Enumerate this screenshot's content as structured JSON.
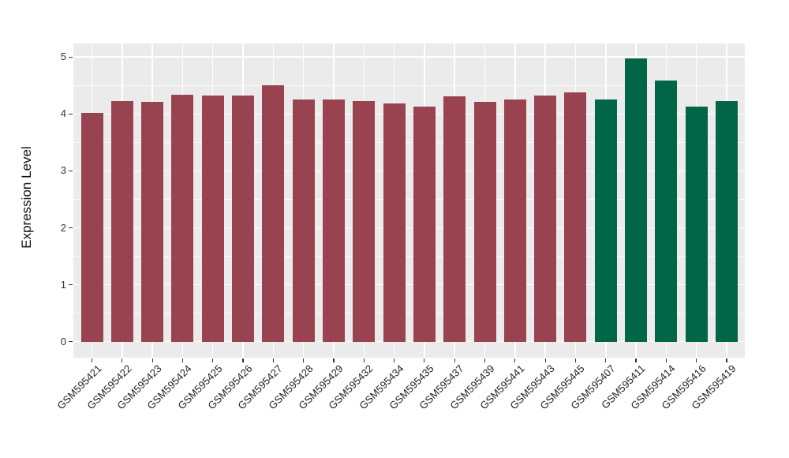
{
  "figure": {
    "background": "#FFFFFF",
    "panel_background": "#EBEBEB",
    "grid_color": "#FFFFFF",
    "axis_text_color": "#333333",
    "title": ""
  },
  "chart_data": {
    "type": "bar",
    "title": "",
    "xlabel": "",
    "ylabel": "Expression Level",
    "legend": "none",
    "grid": "on",
    "categories": [
      "GSM595421",
      "GSM595422",
      "GSM595423",
      "GSM595424",
      "GSM595425",
      "GSM595426",
      "GSM595427",
      "GSM595428",
      "GSM595429",
      "GSM595432",
      "GSM595434",
      "GSM595435",
      "GSM595437",
      "GSM595439",
      "GSM595441",
      "GSM595443",
      "GSM595445",
      "GSM595407",
      "GSM595411",
      "GSM595414",
      "GSM595416",
      "GSM595419"
    ],
    "values": [
      4.02,
      4.23,
      4.21,
      4.34,
      4.33,
      4.33,
      4.5,
      4.26,
      4.25,
      4.23,
      4.19,
      4.13,
      4.31,
      4.21,
      4.26,
      4.33,
      4.38,
      4.25,
      4.97,
      4.58,
      4.13,
      4.22
    ],
    "bar_colors": [
      "#9A4350",
      "#9A4350",
      "#9A4350",
      "#9A4350",
      "#9A4350",
      "#9A4350",
      "#9A4350",
      "#9A4350",
      "#9A4350",
      "#9A4350",
      "#9A4350",
      "#9A4350",
      "#9A4350",
      "#9A4350",
      "#9A4350",
      "#9A4350",
      "#9A4350",
      "#006647",
      "#006647",
      "#006647",
      "#006647",
      "#006647"
    ],
    "groups": [
      {
        "name": "group-red",
        "color": "#9A4350",
        "first_index": 0,
        "last_index": 16
      },
      {
        "name": "group-green",
        "color": "#006647",
        "first_index": 17,
        "last_index": 21
      }
    ],
    "y_ticks": [
      0,
      1,
      2,
      3,
      4,
      5
    ],
    "y_minor_ticks": [
      0.5,
      1.5,
      2.5,
      3.5,
      4.5
    ],
    "ylim": [
      -0.28,
      5.26
    ],
    "x_tick_angle_deg": 45,
    "bar_width_ratio": 0.73
  }
}
